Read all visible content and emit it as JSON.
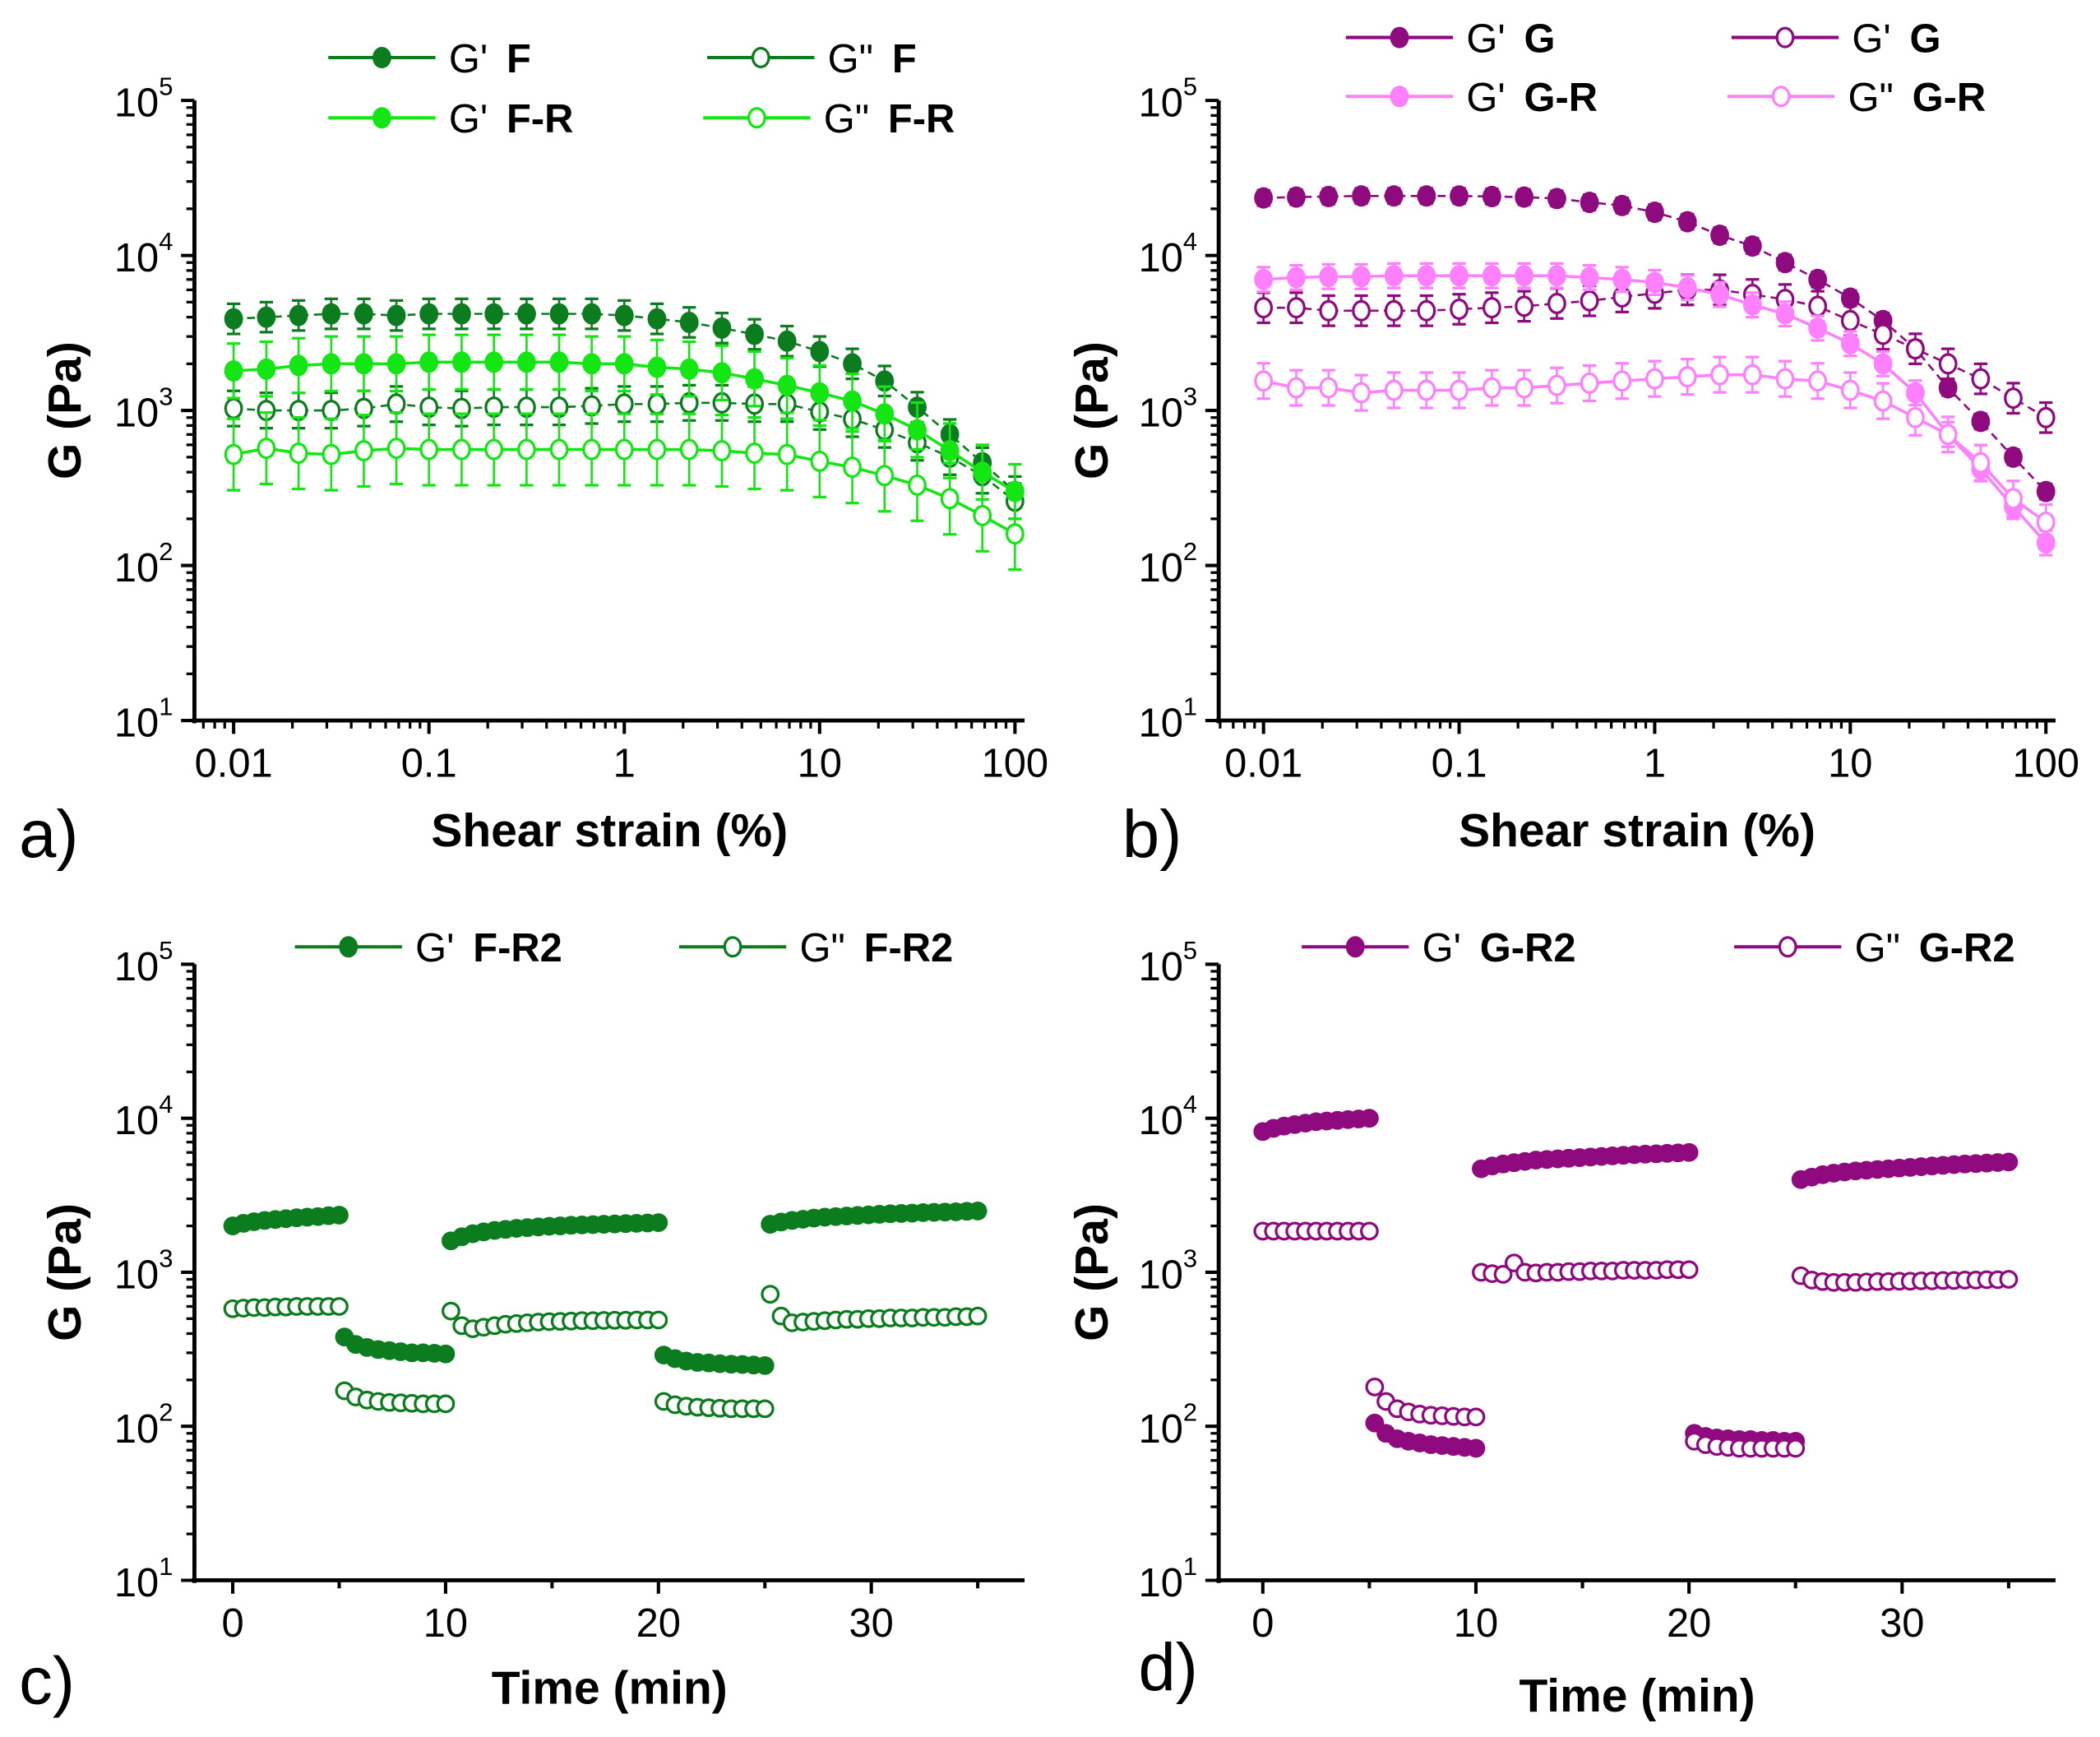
{
  "chart_data": [
    {
      "panel": "a)",
      "type": "line",
      "xscale": "log",
      "yscale": "log",
      "xlabel": "Shear strain (%)",
      "ylabel": "G (Pa)",
      "xlim": [
        0.0063,
        112
      ],
      "ylim": [
        10,
        100000
      ],
      "x_ticks": [
        "0.01",
        "0.1",
        "1",
        "10",
        "100"
      ],
      "x_tick_values": [
        0.01,
        0.1,
        1,
        10,
        100
      ],
      "y_ticks": [
        {
          "base": "10",
          "exp": "1"
        },
        {
          "base": "10",
          "exp": "2"
        },
        {
          "base": "10",
          "exp": "3"
        },
        {
          "base": "10",
          "exp": "4"
        },
        {
          "base": "10",
          "exp": "5"
        }
      ],
      "x": [
        0.01,
        0.0147,
        0.0215,
        0.0316,
        0.0464,
        0.0681,
        0.1,
        0.147,
        0.215,
        0.316,
        0.464,
        0.681,
        1,
        1.47,
        2.15,
        3.16,
        4.64,
        6.81,
        10,
        14.7,
        21.5,
        31.6,
        46.4,
        68.1,
        100
      ],
      "series": [
        {
          "prefix": "G'",
          "name": "F",
          "color": "#0b7d1e",
          "filled": true,
          "dashed": true,
          "error_factor": 1.25,
          "values": [
            3900,
            4000,
            4100,
            4200,
            4200,
            4100,
            4200,
            4200,
            4200,
            4200,
            4200,
            4200,
            4100,
            3900,
            3700,
            3400,
            3100,
            2800,
            2400,
            2000,
            1550,
            1050,
            700,
            460,
            300
          ]
        },
        {
          "prefix": "G\"",
          "name": "F",
          "color": "#0b7d1e",
          "filled": false,
          "dashed": true,
          "error_factor": 1.3,
          "values": [
            1030,
            1000,
            1000,
            1000,
            1030,
            1100,
            1050,
            1030,
            1050,
            1050,
            1050,
            1070,
            1100,
            1100,
            1120,
            1120,
            1100,
            1100,
            980,
            880,
            750,
            620,
            500,
            380,
            260
          ]
        },
        {
          "prefix": "G'",
          "name": "F-R",
          "color": "#14e614",
          "filled": true,
          "dashed": false,
          "error_factor": 1.5,
          "values": [
            1800,
            1850,
            1950,
            2000,
            2000,
            2000,
            2050,
            2050,
            2050,
            2050,
            2050,
            2000,
            2000,
            1900,
            1850,
            1750,
            1600,
            1450,
            1300,
            1150,
            950,
            750,
            550,
            400,
            300
          ]
        },
        {
          "prefix": "G\"",
          "name": "F-R",
          "color": "#14e614",
          "filled": false,
          "dashed": false,
          "error_factor": 1.7,
          "values": [
            520,
            570,
            530,
            520,
            550,
            570,
            560,
            560,
            560,
            560,
            560,
            560,
            560,
            560,
            560,
            550,
            530,
            520,
            470,
            430,
            380,
            330,
            270,
            210,
            160
          ]
        }
      ],
      "legend": "top"
    },
    {
      "panel": "b)",
      "type": "line",
      "xscale": "log",
      "yscale": "log",
      "xlabel": "Shear strain (%)",
      "ylabel": "G (Pa)",
      "xlim": [
        0.0059,
        112
      ],
      "ylim": [
        10,
        100000
      ],
      "x_ticks": [
        "0.01",
        "0.1",
        "1",
        "10",
        "100"
      ],
      "x_tick_values": [
        0.01,
        0.1,
        1,
        10,
        100
      ],
      "y_ticks": [
        {
          "base": "10",
          "exp": "1"
        },
        {
          "base": "10",
          "exp": "2"
        },
        {
          "base": "10",
          "exp": "3"
        },
        {
          "base": "10",
          "exp": "4"
        },
        {
          "base": "10",
          "exp": "5"
        }
      ],
      "x": [
        0.01,
        0.0147,
        0.0215,
        0.0316,
        0.0464,
        0.0681,
        0.1,
        0.147,
        0.215,
        0.316,
        0.464,
        0.681,
        1,
        1.47,
        2.15,
        3.16,
        4.64,
        6.81,
        10,
        14.7,
        21.5,
        31.6,
        46.4,
        68.1,
        100
      ],
      "series": [
        {
          "prefix": "G'",
          "name": "G",
          "color": "#8e0a7e",
          "filled": true,
          "dashed": true,
          "error_factor": 1.12,
          "values": [
            23500,
            23800,
            24000,
            24200,
            24200,
            24200,
            24200,
            24000,
            23800,
            23300,
            22000,
            21000,
            19000,
            16500,
            13500,
            11500,
            9000,
            7000,
            5300,
            3800,
            2500,
            1400,
            850,
            500,
            300
          ]
        },
        {
          "prefix": "G'",
          "name": "G",
          "color": "#8e0a7e",
          "filled": false,
          "dashed": true,
          "error_factor": 1.25,
          "values": [
            4600,
            4600,
            4400,
            4400,
            4400,
            4400,
            4500,
            4600,
            4700,
            4900,
            5100,
            5400,
            5700,
            6000,
            6000,
            5600,
            5200,
            4700,
            3800,
            3100,
            2500,
            2000,
            1600,
            1200,
            900
          ]
        },
        {
          "prefix": "G'",
          "name": "G-R",
          "color": "#ff80ff",
          "filled": true,
          "dashed": false,
          "error_factor": 1.2,
          "values": [
            7000,
            7200,
            7300,
            7300,
            7400,
            7400,
            7400,
            7400,
            7400,
            7400,
            7200,
            7000,
            6700,
            6200,
            5600,
            4800,
            4200,
            3400,
            2700,
            2000,
            1300,
            700,
            420,
            240,
            140
          ]
        },
        {
          "prefix": "G\"",
          "name": "G-R",
          "color": "#ff80ff",
          "filled": false,
          "dashed": false,
          "error_factor": 1.3,
          "values": [
            1550,
            1400,
            1400,
            1300,
            1350,
            1350,
            1350,
            1400,
            1400,
            1450,
            1500,
            1550,
            1600,
            1650,
            1700,
            1700,
            1600,
            1550,
            1350,
            1150,
            900,
            700,
            460,
            270,
            190
          ]
        }
      ],
      "legend": "top"
    },
    {
      "panel": "c)",
      "type": "scatter",
      "xscale": "linear",
      "yscale": "log",
      "xlabel": "Time (min)",
      "ylabel": "G (Pa)",
      "xlim": [
        -1.8,
        37.2
      ],
      "ylim": [
        10,
        100000
      ],
      "x_ticks": [
        "0",
        "10",
        "20",
        "30"
      ],
      "x_tick_values": [
        0,
        10,
        20,
        30
      ],
      "y_ticks": [
        {
          "base": "10",
          "exp": "1"
        },
        {
          "base": "10",
          "exp": "2"
        },
        {
          "base": "10",
          "exp": "3"
        },
        {
          "base": "10",
          "exp": "4"
        },
        {
          "base": "10",
          "exp": "5"
        }
      ],
      "series": [
        {
          "prefix": "G'",
          "name": "F-R2",
          "color": "#0b7d1e",
          "filled": true,
          "segments": [
            {
              "t": [
                0,
                5
              ],
              "values": [
                2000,
                2080,
                2130,
                2170,
                2200,
                2230,
                2260,
                2280,
                2300,
                2330,
                2350
              ]
            },
            {
              "t": [
                5.25,
                10
              ],
              "values": [
                380,
                340,
                325,
                315,
                310,
                305,
                300,
                300,
                298,
                295
              ]
            },
            {
              "t": [
                10.25,
                20
              ],
              "values": [
                1600,
                1700,
                1780,
                1830,
                1870,
                1900,
                1930,
                1950,
                1970,
                1990,
                2000,
                2020,
                2030,
                2040,
                2050,
                2060,
                2070,
                2080,
                2090,
                2100
              ]
            },
            {
              "t": [
                20.25,
                25
              ],
              "values": [
                290,
                275,
                265,
                260,
                258,
                255,
                253,
                252,
                250,
                248
              ]
            },
            {
              "t": [
                25.25,
                35
              ],
              "values": [
                2050,
                2120,
                2170,
                2210,
                2250,
                2280,
                2300,
                2320,
                2340,
                2360,
                2380,
                2400,
                2410,
                2420,
                2440,
                2450,
                2460,
                2470,
                2490,
                2500
              ]
            }
          ]
        },
        {
          "prefix": "G\"",
          "name": "F-R2",
          "color": "#0b7d1e",
          "filled": false,
          "segments": [
            {
              "t": [
                0,
                5
              ],
              "values": [
                580,
                585,
                590,
                590,
                595,
                595,
                600,
                600,
                600,
                600,
                600
              ]
            },
            {
              "t": [
                5.25,
                10
              ],
              "values": [
                170,
                155,
                148,
                145,
                143,
                142,
                141,
                140,
                140,
                140
              ]
            },
            {
              "t": [
                10.25,
                20
              ],
              "values": [
                560,
                450,
                430,
                440,
                450,
                460,
                465,
                470,
                475,
                478,
                480,
                482,
                485,
                485,
                487,
                488,
                488,
                490,
                490,
                490
              ]
            },
            {
              "t": [
                20.25,
                25
              ],
              "values": [
                145,
                138,
                135,
                133,
                132,
                131,
                130,
                130,
                130,
                130
              ]
            },
            {
              "t": [
                25.25,
                35
              ],
              "values": [
                720,
                520,
                470,
                475,
                480,
                485,
                490,
                495,
                495,
                500,
                500,
                505,
                505,
                505,
                510,
                510,
                510,
                515,
                515,
                520
              ]
            }
          ]
        }
      ],
      "legend": "top"
    },
    {
      "panel": "d)",
      "type": "scatter",
      "xscale": "linear",
      "yscale": "log",
      "xlabel": "Time (min)",
      "ylabel": "G (Pa)",
      "xlim": [
        -2.07,
        37.2
      ],
      "ylim": [
        10,
        100000
      ],
      "x_ticks": [
        "0",
        "10",
        "20",
        "30"
      ],
      "x_tick_values": [
        0,
        10,
        20,
        30
      ],
      "y_ticks": [
        {
          "base": "10",
          "exp": "1"
        },
        {
          "base": "10",
          "exp": "2"
        },
        {
          "base": "10",
          "exp": "3"
        },
        {
          "base": "10",
          "exp": "4"
        },
        {
          "base": "10",
          "exp": "5"
        }
      ],
      "series": [
        {
          "prefix": "G'",
          "name": "G-R2",
          "color": "#8e0a7e",
          "filled": true,
          "segments": [
            {
              "t": [
                0,
                5
              ],
              "values": [
                8200,
                8600,
                8900,
                9100,
                9300,
                9500,
                9600,
                9700,
                9800,
                9900,
                10000
              ]
            },
            {
              "t": [
                5.25,
                10
              ],
              "values": [
                105,
                90,
                83,
                80,
                78,
                76,
                75,
                74,
                73,
                72
              ]
            },
            {
              "t": [
                10.25,
                20
              ],
              "values": [
                4700,
                4900,
                5050,
                5150,
                5250,
                5350,
                5400,
                5450,
                5500,
                5550,
                5600,
                5650,
                5700,
                5750,
                5800,
                5850,
                5880,
                5920,
                5960,
                6000
              ]
            },
            {
              "t": [
                20.25,
                25
              ],
              "values": [
                90,
                86,
                84,
                83,
                82,
                82,
                81,
                81,
                80,
                80
              ]
            },
            {
              "t": [
                25.25,
                35
              ],
              "values": [
                4000,
                4150,
                4300,
                4400,
                4480,
                4550,
                4600,
                4650,
                4700,
                4750,
                4800,
                4850,
                4900,
                4950,
                5000,
                5050,
                5080,
                5120,
                5160,
                5200
              ]
            }
          ]
        },
        {
          "prefix": "G\"",
          "name": "G-R2",
          "color": "#8e0a7e",
          "filled": false,
          "segments": [
            {
              "t": [
                0,
                5
              ],
              "values": [
                1850,
                1850,
                1850,
                1850,
                1850,
                1850,
                1850,
                1850,
                1850,
                1850,
                1850
              ]
            },
            {
              "t": [
                5.25,
                10
              ],
              "values": [
                180,
                145,
                130,
                124,
                120,
                118,
                117,
                116,
                115,
                115
              ]
            },
            {
              "t": [
                10.25,
                20
              ],
              "values": [
                1000,
                980,
                970,
                1150,
                1000,
                990,
                1000,
                1000,
                1010,
                1010,
                1020,
                1020,
                1020,
                1030,
                1030,
                1030,
                1030,
                1040,
                1040,
                1040
              ]
            },
            {
              "t": [
                20.25,
                25
              ],
              "values": [
                80,
                76,
                74,
                73,
                72,
                72,
                72,
                72,
                72,
                72
              ]
            },
            {
              "t": [
                25.25,
                35
              ],
              "values": [
                950,
                890,
                870,
                860,
                860,
                860,
                865,
                870,
                870,
                875,
                875,
                880,
                880,
                885,
                885,
                890,
                890,
                895,
                895,
                900
              ]
            }
          ]
        }
      ],
      "legend": "top"
    }
  ]
}
